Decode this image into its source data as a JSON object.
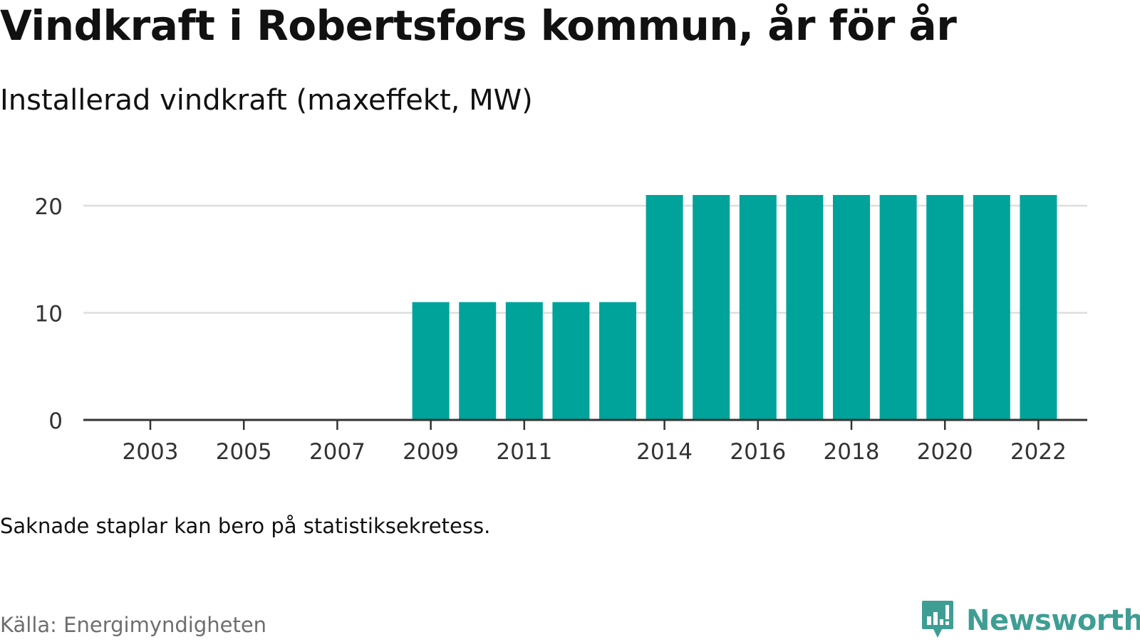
{
  "title": "Vindkraft i Robertsfors kommun, år för år",
  "subtitle": "Installerad vindkraft (maxeffekt, MW)",
  "note": "Saknade staplar kan bero på statistiksekretess.",
  "source": "Källa: Energimyndigheten",
  "brand": {
    "name": "Newsworthy",
    "icon": "newsworthy-logo-icon",
    "color": "#3f9e93"
  },
  "chart_data": {
    "type": "bar",
    "title": "",
    "xlabel": "",
    "ylabel": "",
    "categories": [
      2003,
      2004,
      2005,
      2006,
      2007,
      2008,
      2009,
      2010,
      2011,
      2012,
      2013,
      2014,
      2015,
      2016,
      2017,
      2018,
      2019,
      2020,
      2021,
      2022
    ],
    "values": [
      null,
      null,
      null,
      null,
      null,
      null,
      11,
      11,
      11,
      11,
      11,
      21,
      21,
      21,
      21,
      21,
      21,
      21,
      21,
      21
    ],
    "x_tick_labels": [
      "2003",
      "2005",
      "2007",
      "2009",
      "2011",
      "2014",
      "2016",
      "2018",
      "2020",
      "2022"
    ],
    "y_ticks": [
      0,
      10,
      20
    ],
    "ylim": [
      0,
      21
    ],
    "grid": true,
    "bar_color": "#00a39a"
  }
}
